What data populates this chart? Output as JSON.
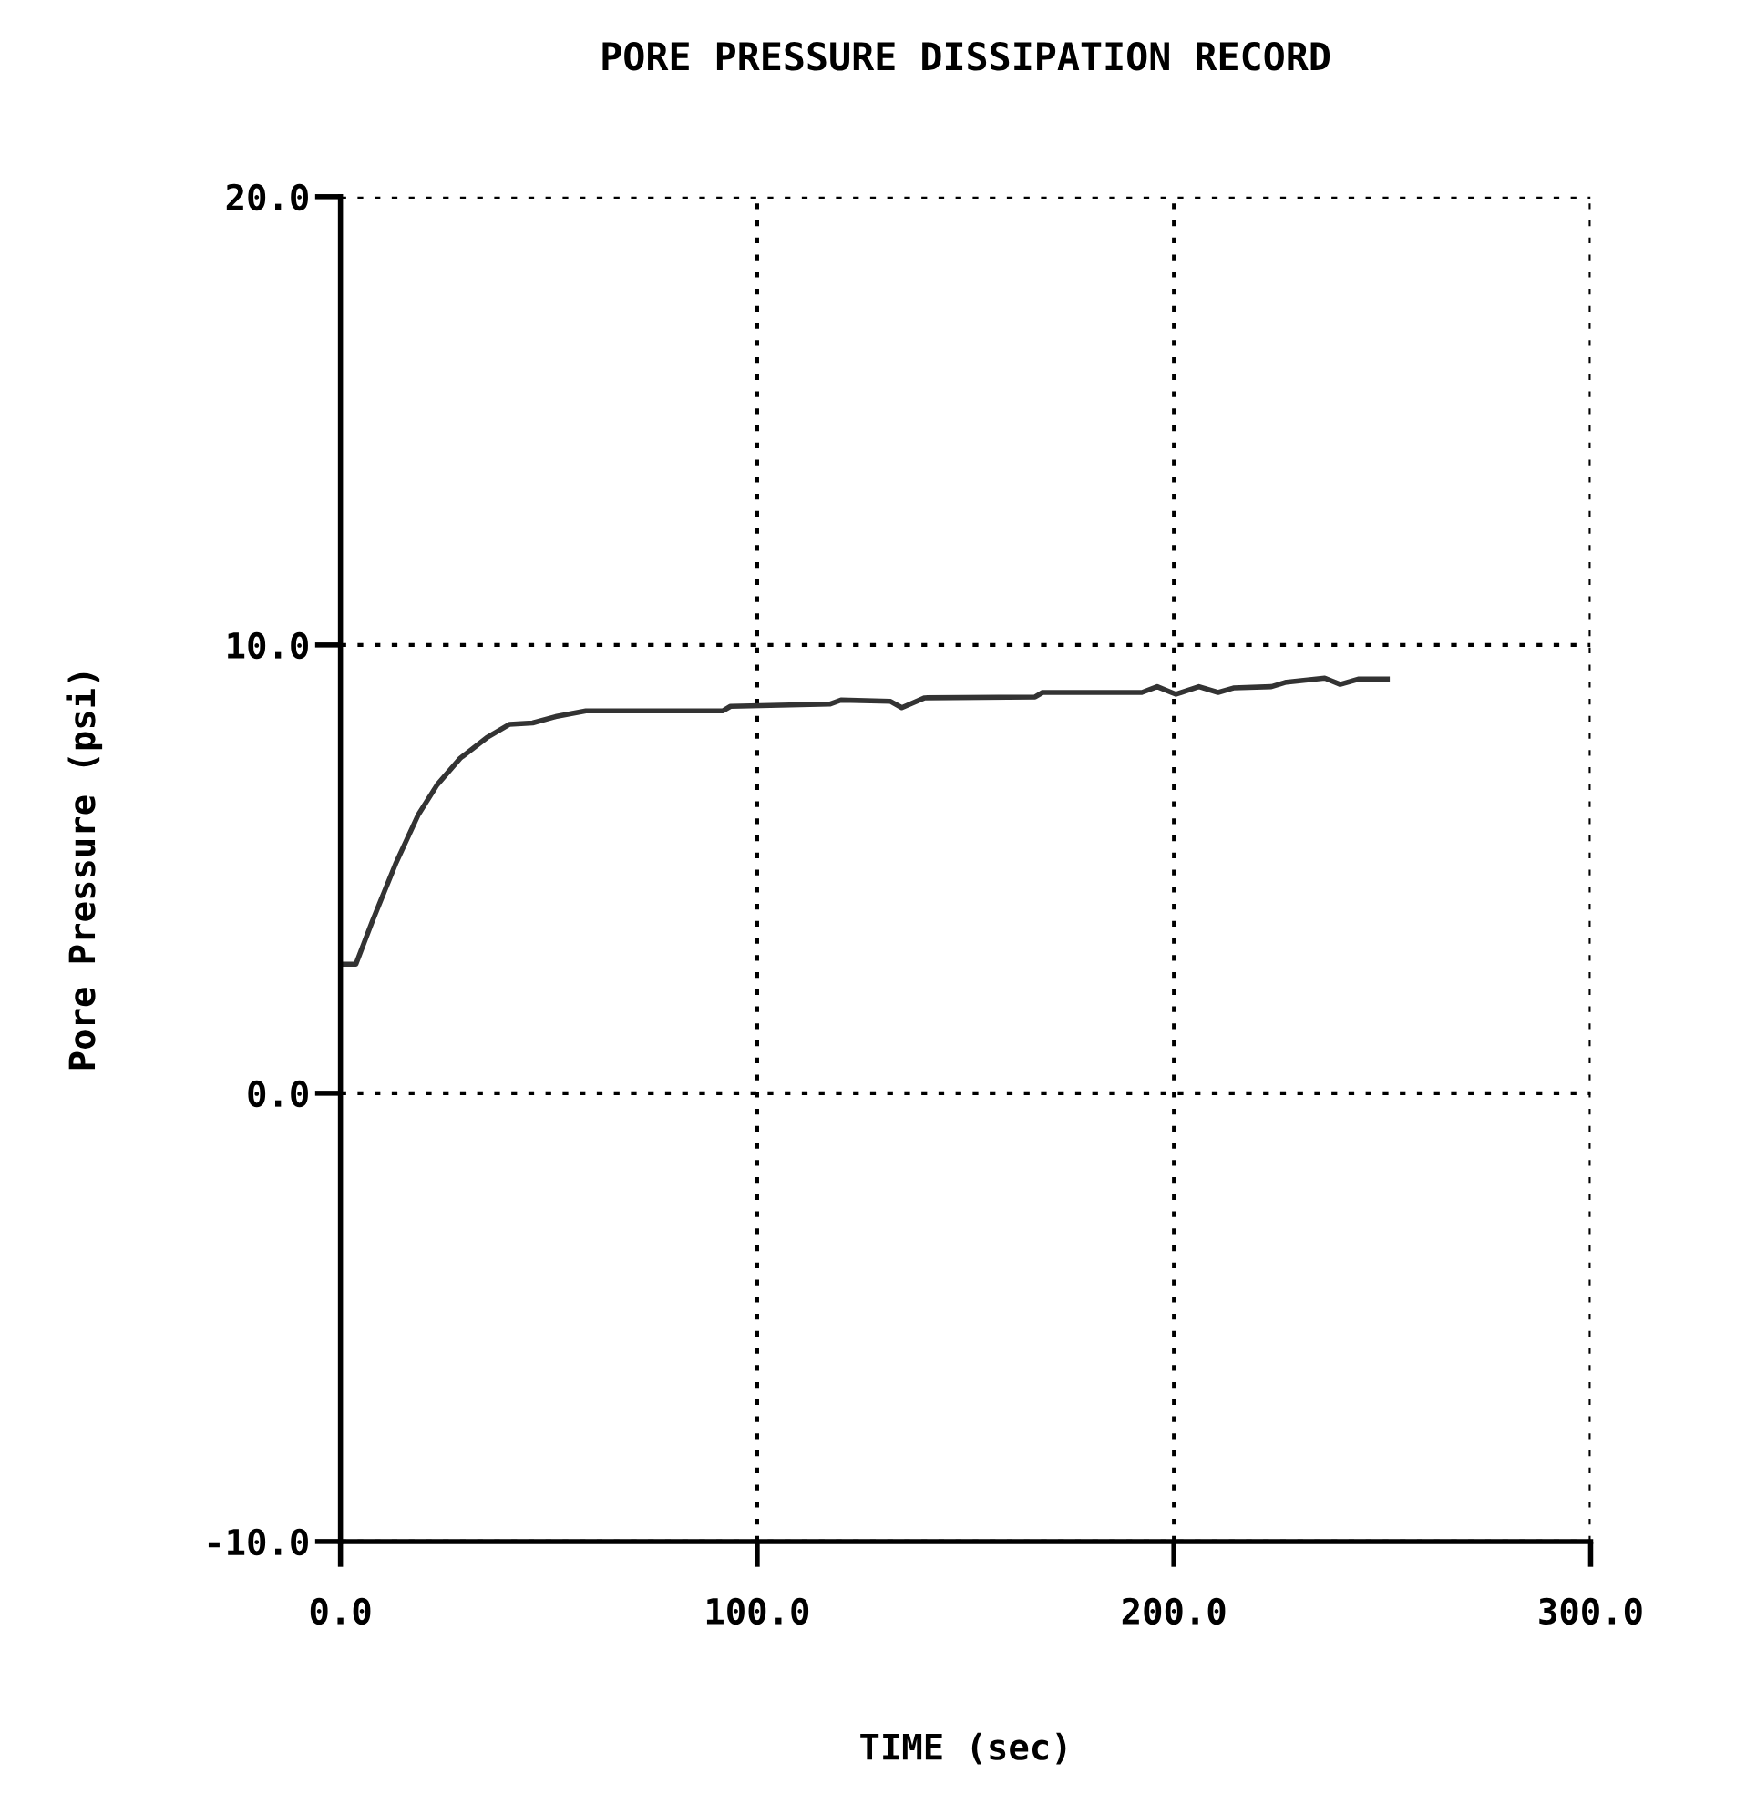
{
  "chart_data": {
    "type": "line",
    "title": "PORE PRESSURE DISSIPATION RECORD",
    "xlabel": "TIME (sec)",
    "ylabel": "Pore Pressure (psi)",
    "x": [
      0,
      3.7,
      7.7,
      13.2,
      18.6,
      23.2,
      28.7,
      35.1,
      40.6,
      46.1,
      51.6,
      58.9,
      75.3,
      91.8,
      93.6,
      117.4,
      120.1,
      132,
      134.7,
      140.2,
      166.7,
      168.5,
      192.3,
      196,
      200.5,
      206,
      210.6,
      214.3,
      223.4,
      227,
      236.2,
      239.9,
      244.4,
      251.2
    ],
    "series": [
      {
        "color": "#333333",
        "values": [
          2.88,
          2.88,
          3.85,
          5.11,
          6.2,
          6.88,
          7.47,
          7.93,
          8.23,
          8.26,
          8.4,
          8.53,
          8.53,
          8.53,
          8.63,
          8.68,
          8.77,
          8.74,
          8.6,
          8.82,
          8.84,
          8.94,
          8.94,
          9.07,
          8.9,
          9.07,
          8.94,
          9.04,
          9.07,
          9.17,
          9.26,
          9.12,
          9.24,
          9.24
        ]
      }
    ],
    "xlim": [
      0,
      300
    ],
    "xticks": [
      {
        "value": 0,
        "label": "0.0"
      },
      {
        "value": 100,
        "label": "100.0"
      },
      {
        "value": 200,
        "label": "200.0"
      },
      {
        "value": 300,
        "label": "300.0"
      }
    ],
    "ylim": [
      -10,
      20
    ],
    "yticks": [
      {
        "value": -10,
        "label": "-10.0"
      },
      {
        "value": 0,
        "label": "0.0"
      },
      {
        "value": 10,
        "label": "10.0"
      },
      {
        "value": 20,
        "label": "20.0"
      }
    ],
    "grid": true,
    "legend": false,
    "marker": "none",
    "line_style": "solid"
  }
}
